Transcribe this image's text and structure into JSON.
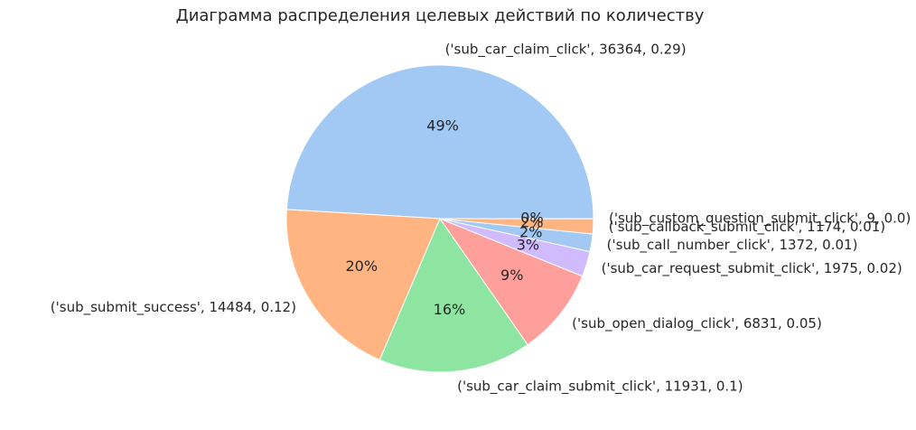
{
  "chart_data": {
    "type": "pie",
    "title": "Диаграмма распределения целевых действий по количеству",
    "slices": [
      {
        "label": "('sub_car_claim_click', 36364, 0.29)",
        "value": 36364,
        "pct_label": "49%",
        "color": "#a1c9f4"
      },
      {
        "label": "('sub_submit_success', 14484, 0.12)",
        "value": 14484,
        "pct_label": "20%",
        "color": "#ffb482"
      },
      {
        "label": "('sub_car_claim_submit_click', 11931, 0.1)",
        "value": 11931,
        "pct_label": "16%",
        "color": "#8de5a1"
      },
      {
        "label": "('sub_open_dialog_click', 6831, 0.05)",
        "value": 6831,
        "pct_label": "9%",
        "color": "#ff9f9b"
      },
      {
        "label": "('sub_car_request_submit_click', 1975, 0.02)",
        "value": 1975,
        "pct_label": "3%",
        "color": "#d0bbff"
      },
      {
        "label": "('sub_call_number_click', 1372, 0.01)",
        "value": 1372,
        "pct_label": "2%",
        "color": "#a1c9f4"
      },
      {
        "label": "('sub_callback_submit_click', 1174, 0.01)",
        "value": 1174,
        "pct_label": "2%",
        "color": "#ffb482"
      },
      {
        "label": "('sub_custom_question_submit_click', 9, 0.0)",
        "value": 9,
        "pct_label": "0%",
        "color": "#8de5a1"
      }
    ]
  }
}
